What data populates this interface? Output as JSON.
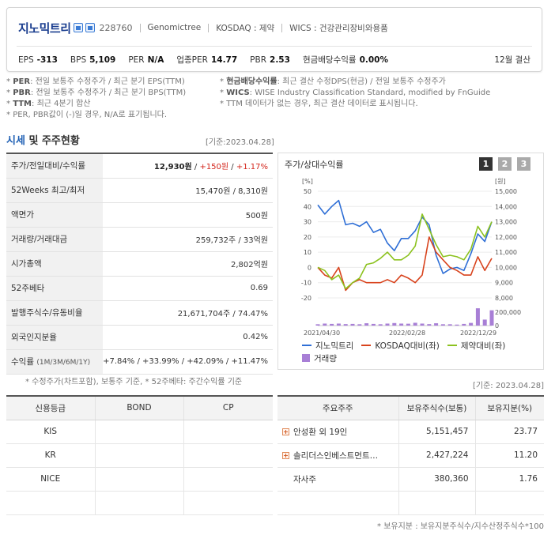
{
  "header": {
    "company_name": "지노믹트리",
    "code": "228760",
    "eng_name": "Genomictree",
    "market": "KOSDAQ : 제약",
    "wics": "WICS : 건강관리장비와용품",
    "metrics": [
      {
        "label": "EPS",
        "value": "-313"
      },
      {
        "label": "BPS",
        "value": "5,109"
      },
      {
        "label": "PER",
        "value": "N/A"
      },
      {
        "label": "업종PER",
        "value": "14.77"
      },
      {
        "label": "PBR",
        "value": "2.53"
      },
      {
        "label": "현금배당수익률",
        "value": "0.00%"
      }
    ],
    "fiscal": "12월 결산"
  },
  "notes": {
    "left": [
      {
        "key": "PER",
        "text": ": 전일 보통주 수정주가 / 최근 분기 EPS(TTM)"
      },
      {
        "key": "PBR",
        "text": ": 전일 보통주 수정주가 / 최근 분기 BPS(TTM)"
      },
      {
        "key": "TTM",
        "text": ": 최근 4분기 합산"
      },
      {
        "key": "",
        "text": "PER, PBR값이 (-)일 경우, N/A로 표기됩니다."
      }
    ],
    "right": [
      {
        "key": "현금배당수익률",
        "text": ": 최근 결산 수정DPS(현금) / 전일 보통주 수정주가"
      },
      {
        "key": "WICS",
        "text": ": WISE Industry Classification Standard, modified by FnGuide"
      },
      {
        "key": "",
        "text": "TTM 데이터가 없는 경우, 최근 결산 데이터로 표시됩니다."
      }
    ]
  },
  "section": {
    "title_a": "시세",
    "title_b": " 및 주주현황",
    "asof": "[기준:2023.04.28]"
  },
  "market_table": {
    "price_label": "주가/전일대비/수익률",
    "price": "12,930원",
    "change": "+150원",
    "rate": "+1.17%",
    "rows": [
      {
        "label": "52Weeks 최고/최저",
        "value": "15,470원 / 8,310원"
      },
      {
        "label": "액면가",
        "value": "500원"
      },
      {
        "label": "거래량/거래대금",
        "value": "259,732주 / 33억원"
      },
      {
        "label": "시가총액",
        "value": "2,802억원"
      },
      {
        "label": "52주베타",
        "value": "0.69"
      },
      {
        "label": "발행주식수/유동비율",
        "value": "21,671,704주 / 74.47%"
      },
      {
        "label": "외국인지분율",
        "value": "0.42%"
      }
    ],
    "return_label": "수익률",
    "return_periods": "(1M/3M/6M/1Y)",
    "returns": "+7.84% / +33.99% / +42.09% / +11.47%",
    "footnote": "* 수정주가(차트포함), 보통주 기준, * 52주베타: 주간수익률 기준"
  },
  "chart_panel": {
    "title": "주가/상대수익률",
    "buttons": [
      "1",
      "2",
      "3"
    ],
    "left_unit": "[%]",
    "right_unit": "[원]",
    "legend": {
      "stock": "지노믹트리",
      "kosdaq": "KOSDAQ대비(좌)",
      "pharma": "제약대비(좌)",
      "volume": "거래량"
    },
    "colors": {
      "stock": "#2f6fd6",
      "kosdaq": "#d8431d",
      "pharma": "#8cc21f",
      "volume": "#a87fd6"
    }
  },
  "chart_data": {
    "type": "line",
    "x_labels": [
      "2021/04/30",
      "2022/02/28",
      "2022/12/29"
    ],
    "left_axis": {
      "ticks": [
        50,
        40,
        30,
        20,
        10,
        0,
        -10,
        -20
      ],
      "range": [
        -20,
        50
      ]
    },
    "right_axis": {
      "ticks": [
        15000,
        14000,
        13000,
        12000,
        11000,
        10000,
        9000,
        8000
      ],
      "range": [
        8000,
        15000
      ]
    },
    "volume_axis": {
      "ticks": [
        "200,000",
        "0"
      ],
      "range": [
        0,
        380000
      ]
    },
    "series": [
      {
        "name": "지노믹트리",
        "axis": "right",
        "values": [
          14100,
          13500,
          14000,
          14400,
          12800,
          12900,
          12700,
          13000,
          12300,
          12500,
          11600,
          11100,
          11900,
          11900,
          12400,
          13300,
          12800,
          10800,
          9600,
          9900,
          10000,
          9800,
          10900,
          12200,
          11700,
          13000
        ]
      },
      {
        "name": "KOSDAQ대비(좌)",
        "axis": "left",
        "values": [
          0,
          -5,
          -7,
          0,
          -15,
          -10,
          -8,
          -10,
          -10,
          -10,
          -8,
          -10,
          -5,
          -7,
          -10,
          -5,
          20,
          10,
          5,
          0,
          -2,
          -5,
          -5,
          7,
          -2,
          6
        ]
      },
      {
        "name": "제약대비(좌)",
        "axis": "left",
        "values": [
          0,
          -2,
          -8,
          -5,
          -14,
          -10,
          -7,
          2,
          3,
          6,
          10,
          5,
          5,
          8,
          14,
          35,
          25,
          15,
          7,
          8,
          7,
          5,
          12,
          27,
          20,
          30
        ]
      },
      {
        "name": "거래량",
        "axis": "volume",
        "values": [
          20000,
          30000,
          25000,
          30000,
          22000,
          25000,
          20000,
          35000,
          25000,
          20000,
          30000,
          38000,
          30000,
          28000,
          42000,
          30000,
          22000,
          35000,
          20000,
          20000,
          15000,
          25000,
          40000,
          260000,
          90000,
          230000
        ]
      }
    ]
  },
  "credit_table": {
    "headers": [
      "신용등급",
      "BOND",
      "CP"
    ],
    "rows": [
      "KIS",
      "KR",
      "NICE",
      ""
    ]
  },
  "holders_table": {
    "asof": "[기준: 2023.04.28]",
    "headers": [
      "주요주주",
      "보유주식수(보통)",
      "보유지분(%)"
    ],
    "rows": [
      {
        "name": "안성환 외 19인",
        "shares": "5,151,457",
        "pct": "23.77",
        "expand": true
      },
      {
        "name": "솔리더스인베스트먼트…",
        "shares": "2,427,224",
        "pct": "11.20",
        "expand": true
      },
      {
        "name": "자사주",
        "shares": "380,360",
        "pct": "1.76",
        "expand": false
      },
      {
        "name": "",
        "shares": "",
        "pct": "",
        "expand": false
      }
    ],
    "footnote": "* 보유지분 : 보유지분주식수/지수산정주식수*100"
  }
}
